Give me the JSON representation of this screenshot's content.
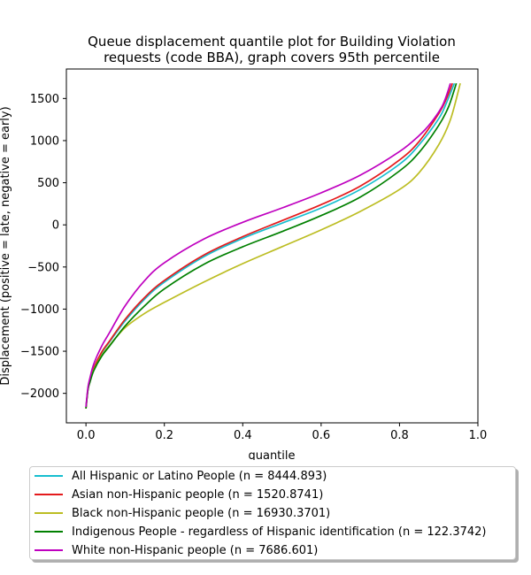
{
  "chart_data": {
    "type": "line",
    "title": "Queue displacement quantile plot for Building Violation requests (code BBA), graph covers 95th percentile",
    "title_lines": [
      "Queue displacement quantile plot for Building Violation",
      "requests (code BBA), graph covers 95th percentile"
    ],
    "xlabel": "quantile",
    "ylabel": "Displacement (positive = late, negative = early)",
    "xlim": [
      -0.05,
      1.0
    ],
    "ylim": [
      -2350,
      1850
    ],
    "xticks": [
      0.0,
      0.2,
      0.4,
      0.6,
      0.8,
      1.0
    ],
    "xtick_labels": [
      "0.0",
      "0.2",
      "0.4",
      "0.6",
      "0.8",
      "1.0"
    ],
    "yticks": [
      -2000,
      -1500,
      -1000,
      -500,
      0,
      500,
      1000,
      1500
    ],
    "ytick_labels": [
      "−2000",
      "−1500",
      "−1000",
      "−500",
      "0",
      "500",
      "1000",
      "1500"
    ],
    "grid": false,
    "legend_position": "below plot",
    "series": [
      {
        "name": "All Hispanic or Latino People (n = 8444.893)",
        "color": "#17becf",
        "x": [
          0.0,
          0.005,
          0.01,
          0.02,
          0.04,
          0.06,
          0.1,
          0.15,
          0.2,
          0.3,
          0.4,
          0.5,
          0.6,
          0.7,
          0.8,
          0.85,
          0.9,
          0.92,
          0.94
        ],
        "y": [
          -2170,
          -1950,
          -1850,
          -1700,
          -1520,
          -1390,
          -1140,
          -880,
          -680,
          -380,
          -160,
          20,
          200,
          420,
          720,
          950,
          1260,
          1450,
          1680
        ]
      },
      {
        "name": "Asian non-Hispanic people (n = 1520.8741)",
        "color": "#e41a1c",
        "x": [
          0.0,
          0.005,
          0.01,
          0.02,
          0.04,
          0.06,
          0.1,
          0.15,
          0.2,
          0.3,
          0.4,
          0.5,
          0.6,
          0.7,
          0.8,
          0.85,
          0.9,
          0.92,
          0.935
        ],
        "y": [
          -2180,
          -1960,
          -1860,
          -1700,
          -1510,
          -1380,
          -1120,
          -860,
          -660,
          -360,
          -140,
          50,
          240,
          460,
          770,
          990,
          1320,
          1500,
          1680
        ]
      },
      {
        "name": "Black non-Hispanic people (n = 16930.3701)",
        "color": "#bcbd22",
        "x": [
          0.0,
          0.005,
          0.01,
          0.02,
          0.04,
          0.06,
          0.1,
          0.15,
          0.2,
          0.3,
          0.4,
          0.5,
          0.6,
          0.7,
          0.8,
          0.85,
          0.9,
          0.93,
          0.955
        ],
        "y": [
          -2180,
          -1950,
          -1860,
          -1720,
          -1550,
          -1430,
          -1220,
          -1050,
          -920,
          -680,
          -460,
          -260,
          -60,
          160,
          420,
          620,
          950,
          1250,
          1680
        ]
      },
      {
        "name": "Indigenous People - regardless of Hispanic identification (n = 122.3742)",
        "color": "#008000",
        "x": [
          0.0,
          0.005,
          0.01,
          0.02,
          0.04,
          0.06,
          0.1,
          0.15,
          0.2,
          0.3,
          0.4,
          0.5,
          0.6,
          0.7,
          0.8,
          0.85,
          0.9,
          0.925,
          0.945
        ],
        "y": [
          -2180,
          -1960,
          -1870,
          -1730,
          -1560,
          -1440,
          -1200,
          -960,
          -760,
          -470,
          -260,
          -80,
          110,
          330,
          640,
          860,
          1180,
          1400,
          1680
        ]
      },
      {
        "name": "White non-Hispanic people (n = 7686.601)",
        "color": "#bf00bf",
        "x": [
          0.0,
          0.005,
          0.01,
          0.02,
          0.04,
          0.06,
          0.1,
          0.15,
          0.2,
          0.3,
          0.4,
          0.5,
          0.6,
          0.7,
          0.8,
          0.85,
          0.88,
          0.91,
          0.93
        ],
        "y": [
          -2160,
          -1930,
          -1820,
          -1650,
          -1440,
          -1280,
          -960,
          -660,
          -450,
          -170,
          30,
          200,
          380,
          590,
          870,
          1060,
          1210,
          1420,
          1680
        ]
      }
    ]
  }
}
